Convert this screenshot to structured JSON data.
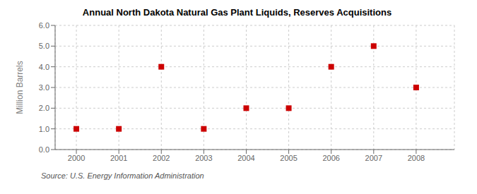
{
  "chart_data": {
    "type": "scatter",
    "title": "Annual North Dakota Natural Gas Plant Liquids, Reserves Acquisitions",
    "ylabel": "Million Barrels",
    "annotations": [
      "Source: U.S. Energy Information Administration"
    ],
    "x": [
      2000,
      2001,
      2002,
      2003,
      2004,
      2005,
      2006,
      2007,
      2008
    ],
    "values": [
      1.0,
      1.0,
      4.0,
      1.0,
      2.0,
      2.0,
      4.0,
      5.0,
      3.0
    ],
    "color": "#cc0000",
    "marker": "square",
    "xlim": [
      1999.5,
      2008.9
    ],
    "ylim": [
      0.0,
      6.0
    ],
    "xticks": [
      2000,
      2001,
      2002,
      2003,
      2004,
      2005,
      2006,
      2007,
      2008
    ],
    "yticks": [
      {
        "value": 0,
        "label": "0.0"
      },
      {
        "value": 1,
        "label": "1.0"
      },
      {
        "value": 2,
        "label": "2.0"
      },
      {
        "value": 3,
        "label": "3.0"
      },
      {
        "value": 4,
        "label": "4.0"
      },
      {
        "value": 5,
        "label": "5.0"
      },
      {
        "value": 6,
        "label": "6.0"
      }
    ],
    "grid": true
  }
}
